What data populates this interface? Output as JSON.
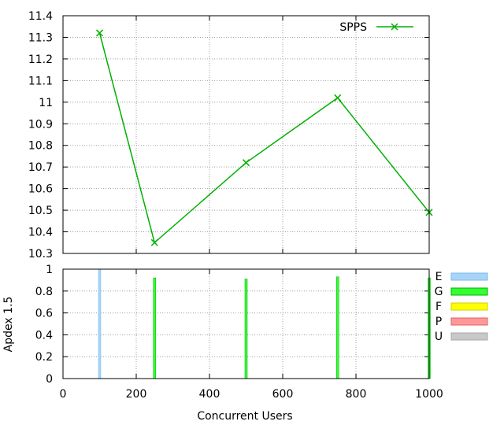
{
  "chart_data": [
    {
      "type": "line",
      "title": "",
      "xlabel": "",
      "ylabel": "",
      "xlim": [
        0,
        1000
      ],
      "ylim": [
        10.3,
        11.4
      ],
      "yticks": [
        "10.3",
        "10.4",
        "10.5",
        "10.6",
        "10.7",
        "10.8",
        "10.9",
        "11",
        "11.1",
        "11.2",
        "11.3",
        "11.4"
      ],
      "grid": true,
      "legend_position": "top-right",
      "series": [
        {
          "name": "SPPS",
          "color": "#00b000",
          "marker": "x",
          "x": [
            100,
            250,
            500,
            750,
            1000
          ],
          "y": [
            11.32,
            10.35,
            10.72,
            11.02,
            10.49
          ]
        }
      ]
    },
    {
      "type": "bar",
      "title": "",
      "xlabel": "Concurrent Users",
      "ylabel": "Apdex 1.5",
      "xlim": [
        0,
        1000
      ],
      "ylim": [
        0,
        1
      ],
      "xticks": [
        "0",
        "200",
        "400",
        "600",
        "800",
        "1000"
      ],
      "yticks": [
        "0",
        "0.2",
        "0.4",
        "0.6",
        "0.8",
        "1"
      ],
      "grid": true,
      "legend_position": "right",
      "legend": [
        {
          "label": "E",
          "color": "#a8d4f8",
          "border": "#7ab8ec"
        },
        {
          "label": "G",
          "color": "#33ff33",
          "border": "#00b000"
        },
        {
          "label": "F",
          "color": "#ffff00",
          "border": "#d0d000"
        },
        {
          "label": "P",
          "color": "#ff9999",
          "border": "#e06060"
        },
        {
          "label": "U",
          "color": "#c8c8c8",
          "border": "#a8a8a8"
        }
      ],
      "bars": [
        {
          "x": 100,
          "value": 1.0,
          "rating": "E"
        },
        {
          "x": 250,
          "value": 0.92,
          "rating": "G"
        },
        {
          "x": 500,
          "value": 0.91,
          "rating": "G"
        },
        {
          "x": 750,
          "value": 0.93,
          "rating": "G"
        },
        {
          "x": 1000,
          "value": 0.92,
          "rating": "G"
        }
      ]
    }
  ]
}
